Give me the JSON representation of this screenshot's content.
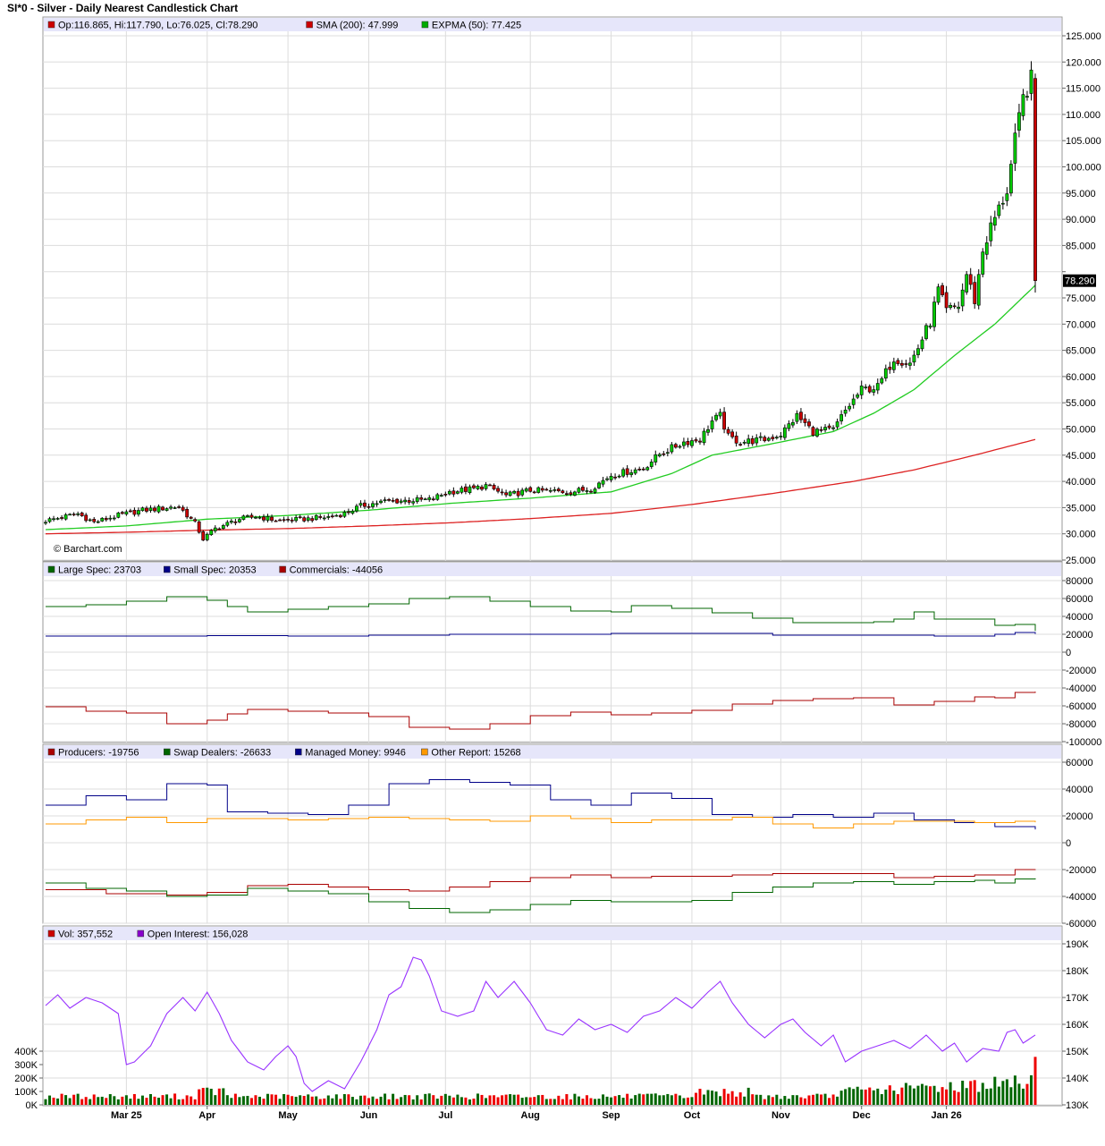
{
  "page": {
    "title": "SI*0 - Silver - Daily Nearest Candlestick Chart",
    "watermark": "© Barchart.com",
    "last_price_tag": "78.290"
  },
  "x_axis": {
    "months": [
      {
        "label": "Mar 25",
        "index": 20
      },
      {
        "label": "Apr",
        "index": 40
      },
      {
        "label": "May",
        "index": 60
      },
      {
        "label": "Jun",
        "index": 80
      },
      {
        "label": "Jul",
        "index": 99
      },
      {
        "label": "Aug",
        "index": 120
      },
      {
        "label": "Sep",
        "index": 140
      },
      {
        "label": "Oct",
        "index": 160
      },
      {
        "label": "Nov",
        "index": 182
      },
      {
        "label": "Dec",
        "index": 202
      },
      {
        "label": "Jan 26",
        "index": 223
      }
    ],
    "bar_count": 241
  },
  "panels": {
    "price": {
      "legend": [
        {
          "label": "Op:116.865, Hi:117.790, Lo:76.025, Cl:78.290",
          "color": "#cc0000"
        },
        {
          "label": "SMA (200): 47.999",
          "color": "#cc0000"
        },
        {
          "label": "EXPMA (50): 77.425",
          "color": "#00aa00"
        }
      ],
      "ylim": [
        25,
        125
      ],
      "ticks": [
        "25.000",
        "30.000",
        "35.000",
        "40.000",
        "45.000",
        "50.000",
        "55.000",
        "60.000",
        "65.000",
        "70.000",
        "75.000",
        "80.000",
        "85.000",
        "90.000",
        "95.000",
        "100.000",
        "105.000",
        "110.000",
        "115.000",
        "120.000",
        "125.000"
      ],
      "hidden_tick": "80.000",
      "colors": {
        "up": "#00cc00",
        "down": "#cc0000",
        "sma": "#dd2222",
        "ema": "#22cc22"
      }
    },
    "cot1": {
      "legend": [
        {
          "label": "Large Spec: 23703",
          "color": "#006600"
        },
        {
          "label": "Small Spec: 20353",
          "color": "#000088"
        },
        {
          "label": "Commercials: -44056",
          "color": "#aa0000"
        }
      ],
      "ylim": [
        -100000,
        80000
      ],
      "ticks": [
        "80000",
        "60000",
        "40000",
        "20000",
        "0",
        "-20000",
        "-40000",
        "-60000",
        "-80000",
        "-100000"
      ],
      "colors": {
        "large": "#006600",
        "small": "#000088",
        "comm": "#aa0000"
      }
    },
    "cot2": {
      "legend": [
        {
          "label": "Producers: -19756",
          "color": "#aa0000"
        },
        {
          "label": "Swap Dealers: -26633",
          "color": "#006600"
        },
        {
          "label": "Managed Money: 9946",
          "color": "#000088"
        },
        {
          "label": "Other Report: 15268",
          "color": "#ff9900"
        }
      ],
      "ylim": [
        -60000,
        60000
      ],
      "ticks": [
        "60000",
        "40000",
        "20000",
        "0",
        "-20000",
        "-40000",
        "-60000"
      ],
      "colors": {
        "producers": "#aa0000",
        "swap": "#006600",
        "managed": "#000088",
        "other": "#ff9900"
      }
    },
    "volume": {
      "legend": [
        {
          "label": "Vol: 357,552",
          "color": "#cc0000"
        },
        {
          "label": "Open Interest: 156,028",
          "color": "#8800cc"
        }
      ],
      "vol_ticks": [
        "0K",
        "100K",
        "200K",
        "300K",
        "400K"
      ],
      "oi_ticks": [
        "130K",
        "140K",
        "150K",
        "160K",
        "170K",
        "180K",
        "190K"
      ],
      "vol_lim": [
        0,
        1200000
      ],
      "oi_lim": [
        130000,
        190000
      ],
      "colors": {
        "up": "#006600",
        "down": "#ee0000",
        "oi": "#9933ff"
      }
    }
  },
  "chart_data": {
    "type": "candlestick",
    "title": "SI*0 - Silver - Daily Nearest Candlestick Chart",
    "price_anchors": [
      [
        0,
        32.5
      ],
      [
        8,
        33.8
      ],
      [
        12,
        32.2
      ],
      [
        18,
        33.5
      ],
      [
        24,
        34.5
      ],
      [
        33,
        35.2
      ],
      [
        37,
        32.0
      ],
      [
        39,
        29.0
      ],
      [
        42,
        31.0
      ],
      [
        48,
        32.8
      ],
      [
        52,
        33.3
      ],
      [
        58,
        32.5
      ],
      [
        64,
        32.8
      ],
      [
        70,
        33.2
      ],
      [
        74,
        33.9
      ],
      [
        78,
        35.3
      ],
      [
        84,
        36.2
      ],
      [
        95,
        36.5
      ],
      [
        100,
        38.0
      ],
      [
        106,
        38.6
      ],
      [
        109,
        39.2
      ],
      [
        114,
        37.3
      ],
      [
        120,
        38.3
      ],
      [
        130,
        38.0
      ],
      [
        135,
        38.6
      ],
      [
        140,
        41.2
      ],
      [
        148,
        42.5
      ],
      [
        152,
        45.2
      ],
      [
        158,
        47.5
      ],
      [
        162,
        48.0
      ],
      [
        165,
        51.5
      ],
      [
        167,
        52.5
      ],
      [
        169,
        48.5
      ],
      [
        172,
        47.5
      ],
      [
        178,
        48.0
      ],
      [
        182,
        49.0
      ],
      [
        186,
        52.5
      ],
      [
        190,
        49.5
      ],
      [
        195,
        49.8
      ],
      [
        198,
        53.5
      ],
      [
        202,
        57.5
      ],
      [
        206,
        58.0
      ],
      [
        210,
        63.5
      ],
      [
        214,
        62.5
      ],
      [
        216,
        65.5
      ],
      [
        219,
        70.5
      ],
      [
        221,
        76.5
      ],
      [
        223,
        72.5
      ],
      [
        226,
        73.5
      ],
      [
        228,
        79.5
      ],
      [
        230,
        74.5
      ],
      [
        232,
        84.0
      ],
      [
        234,
        88.5
      ],
      [
        236,
        92.0
      ],
      [
        238,
        95.5
      ],
      [
        240,
        105.0
      ],
      [
        242,
        113.0
      ],
      [
        244,
        116.8
      ],
      [
        245,
        78.29
      ]
    ],
    "ema50_anchors": [
      [
        0,
        30.8
      ],
      [
        20,
        31.5
      ],
      [
        40,
        32.8
      ],
      [
        60,
        33.5
      ],
      [
        80,
        34.5
      ],
      [
        100,
        35.8
      ],
      [
        120,
        36.8
      ],
      [
        140,
        38.0
      ],
      [
        155,
        41.5
      ],
      [
        165,
        45.0
      ],
      [
        180,
        47.2
      ],
      [
        195,
        49.5
      ],
      [
        205,
        53.0
      ],
      [
        215,
        57.5
      ],
      [
        225,
        64.0
      ],
      [
        235,
        70.0
      ],
      [
        245,
        77.4
      ]
    ],
    "sma200_anchors": [
      [
        0,
        30.0
      ],
      [
        20,
        30.3
      ],
      [
        40,
        30.7
      ],
      [
        60,
        31.0
      ],
      [
        80,
        31.5
      ],
      [
        100,
        32.1
      ],
      [
        120,
        32.9
      ],
      [
        140,
        33.9
      ],
      [
        160,
        35.6
      ],
      [
        180,
        37.7
      ],
      [
        200,
        40.0
      ],
      [
        215,
        42.2
      ],
      [
        230,
        45.0
      ],
      [
        240,
        47.0
      ],
      [
        245,
        48.0
      ]
    ],
    "cot_large_spec": [
      [
        0,
        51000
      ],
      [
        10,
        53000
      ],
      [
        20,
        57000
      ],
      [
        30,
        62000
      ],
      [
        40,
        58000
      ],
      [
        45,
        51000
      ],
      [
        50,
        45000
      ],
      [
        60,
        48000
      ],
      [
        70,
        51000
      ],
      [
        80,
        54000
      ],
      [
        90,
        60000
      ],
      [
        100,
        62000
      ],
      [
        110,
        57000
      ],
      [
        120,
        51000
      ],
      [
        130,
        46000
      ],
      [
        140,
        45000
      ],
      [
        145,
        52000
      ],
      [
        155,
        49000
      ],
      [
        165,
        44000
      ],
      [
        175,
        38000
      ],
      [
        185,
        33000
      ],
      [
        195,
        33000
      ],
      [
        205,
        34000
      ],
      [
        210,
        37000
      ],
      [
        215,
        45000
      ],
      [
        220,
        37000
      ],
      [
        230,
        37000
      ],
      [
        235,
        30000
      ],
      [
        240,
        31000
      ],
      [
        245,
        23703
      ]
    ],
    "cot_small_spec": [
      [
        0,
        18000
      ],
      [
        20,
        18000
      ],
      [
        40,
        18500
      ],
      [
        60,
        18000
      ],
      [
        80,
        19000
      ],
      [
        100,
        20000
      ],
      [
        120,
        20000
      ],
      [
        140,
        21000
      ],
      [
        160,
        21000
      ],
      [
        180,
        19000
      ],
      [
        200,
        19000
      ],
      [
        220,
        18000
      ],
      [
        235,
        20000
      ],
      [
        240,
        22000
      ],
      [
        245,
        20353
      ]
    ],
    "cot_commercials": [
      [
        0,
        -61000
      ],
      [
        10,
        -66000
      ],
      [
        20,
        -68000
      ],
      [
        30,
        -80000
      ],
      [
        40,
        -76000
      ],
      [
        45,
        -69000
      ],
      [
        50,
        -64000
      ],
      [
        60,
        -66000
      ],
      [
        70,
        -68000
      ],
      [
        80,
        -72000
      ],
      [
        90,
        -84000
      ],
      [
        100,
        -86000
      ],
      [
        110,
        -80000
      ],
      [
        120,
        -71000
      ],
      [
        130,
        -67000
      ],
      [
        140,
        -70000
      ],
      [
        150,
        -68000
      ],
      [
        160,
        -65000
      ],
      [
        170,
        -58000
      ],
      [
        180,
        -54000
      ],
      [
        190,
        -52000
      ],
      [
        200,
        -51000
      ],
      [
        210,
        -59000
      ],
      [
        220,
        -55000
      ],
      [
        230,
        -50000
      ],
      [
        235,
        -51000
      ],
      [
        240,
        -45000
      ],
      [
        245,
        -44056
      ]
    ],
    "cot_producers": [
      [
        0,
        -35000
      ],
      [
        15,
        -38000
      ],
      [
        30,
        -39000
      ],
      [
        40,
        -37000
      ],
      [
        50,
        -32000
      ],
      [
        60,
        -31000
      ],
      [
        70,
        -33000
      ],
      [
        80,
        -35000
      ],
      [
        90,
        -36000
      ],
      [
        100,
        -33000
      ],
      [
        110,
        -29000
      ],
      [
        120,
        -26000
      ],
      [
        130,
        -24000
      ],
      [
        140,
        -26000
      ],
      [
        150,
        -25000
      ],
      [
        160,
        -25000
      ],
      [
        170,
        -24000
      ],
      [
        180,
        -23000
      ],
      [
        190,
        -23000
      ],
      [
        200,
        -23000
      ],
      [
        210,
        -26000
      ],
      [
        220,
        -25000
      ],
      [
        230,
        -24000
      ],
      [
        240,
        -20000
      ],
      [
        245,
        -19756
      ]
    ],
    "cot_swap": [
      [
        0,
        -30000
      ],
      [
        10,
        -34000
      ],
      [
        20,
        -36000
      ],
      [
        30,
        -40000
      ],
      [
        40,
        -39000
      ],
      [
        50,
        -34000
      ],
      [
        60,
        -36000
      ],
      [
        70,
        -38000
      ],
      [
        80,
        -44000
      ],
      [
        90,
        -49000
      ],
      [
        100,
        -52000
      ],
      [
        110,
        -50000
      ],
      [
        120,
        -46000
      ],
      [
        130,
        -43000
      ],
      [
        140,
        -44000
      ],
      [
        150,
        -44000
      ],
      [
        160,
        -43000
      ],
      [
        170,
        -37000
      ],
      [
        180,
        -33000
      ],
      [
        190,
        -30000
      ],
      [
        200,
        -29000
      ],
      [
        210,
        -31000
      ],
      [
        220,
        -29000
      ],
      [
        230,
        -28000
      ],
      [
        235,
        -30000
      ],
      [
        240,
        -27000
      ],
      [
        245,
        -26633
      ]
    ],
    "cot_managed": [
      [
        0,
        28000
      ],
      [
        10,
        35000
      ],
      [
        20,
        32000
      ],
      [
        30,
        44000
      ],
      [
        40,
        43000
      ],
      [
        45,
        23000
      ],
      [
        55,
        22000
      ],
      [
        65,
        21000
      ],
      [
        75,
        28000
      ],
      [
        85,
        44000
      ],
      [
        95,
        47000
      ],
      [
        105,
        45000
      ],
      [
        115,
        43000
      ],
      [
        125,
        32000
      ],
      [
        135,
        28000
      ],
      [
        145,
        37000
      ],
      [
        155,
        33000
      ],
      [
        165,
        21000
      ],
      [
        175,
        19000
      ],
      [
        185,
        21000
      ],
      [
        195,
        19000
      ],
      [
        205,
        22000
      ],
      [
        215,
        17000
      ],
      [
        225,
        15000
      ],
      [
        235,
        12000
      ],
      [
        245,
        9946
      ]
    ],
    "cot_other": [
      [
        0,
        14000
      ],
      [
        10,
        17000
      ],
      [
        20,
        19000
      ],
      [
        30,
        15000
      ],
      [
        40,
        18000
      ],
      [
        50,
        18000
      ],
      [
        60,
        17000
      ],
      [
        70,
        18000
      ],
      [
        80,
        19000
      ],
      [
        90,
        18000
      ],
      [
        100,
        17000
      ],
      [
        110,
        16000
      ],
      [
        120,
        20000
      ],
      [
        130,
        18000
      ],
      [
        140,
        15000
      ],
      [
        150,
        17000
      ],
      [
        160,
        17000
      ],
      [
        170,
        19000
      ],
      [
        180,
        14000
      ],
      [
        190,
        11000
      ],
      [
        200,
        14000
      ],
      [
        210,
        16000
      ],
      [
        220,
        16000
      ],
      [
        230,
        15000
      ],
      [
        240,
        16000
      ],
      [
        245,
        15268
      ]
    ],
    "open_interest": [
      [
        0,
        167000
      ],
      [
        3,
        171000
      ],
      [
        6,
        166000
      ],
      [
        10,
        170000
      ],
      [
        14,
        168000
      ],
      [
        18,
        164000
      ],
      [
        20,
        145000
      ],
      [
        22,
        146000
      ],
      [
        26,
        152000
      ],
      [
        30,
        164000
      ],
      [
        34,
        170000
      ],
      [
        37,
        165000
      ],
      [
        40,
        172000
      ],
      [
        43,
        164000
      ],
      [
        46,
        154000
      ],
      [
        50,
        146000
      ],
      [
        54,
        143000
      ],
      [
        57,
        148000
      ],
      [
        60,
        152000
      ],
      [
        62,
        148000
      ],
      [
        64,
        138000
      ],
      [
        66,
        135000
      ],
      [
        70,
        139000
      ],
      [
        74,
        136000
      ],
      [
        78,
        146000
      ],
      [
        82,
        158000
      ],
      [
        85,
        171000
      ],
      [
        88,
        174000
      ],
      [
        91,
        185000
      ],
      [
        93,
        184000
      ],
      [
        95,
        178000
      ],
      [
        98,
        165000
      ],
      [
        102,
        163000
      ],
      [
        106,
        165000
      ],
      [
        109,
        176000
      ],
      [
        112,
        170000
      ],
      [
        116,
        176000
      ],
      [
        120,
        168000
      ],
      [
        124,
        158000
      ],
      [
        128,
        156000
      ],
      [
        132,
        162000
      ],
      [
        136,
        158000
      ],
      [
        140,
        160000
      ],
      [
        144,
        157000
      ],
      [
        148,
        163000
      ],
      [
        152,
        165000
      ],
      [
        156,
        170000
      ],
      [
        160,
        166000
      ],
      [
        164,
        172000
      ],
      [
        167,
        176000
      ],
      [
        170,
        168000
      ],
      [
        174,
        160000
      ],
      [
        178,
        155000
      ],
      [
        182,
        160000
      ],
      [
        185,
        162000
      ],
      [
        188,
        157000
      ],
      [
        192,
        152000
      ],
      [
        195,
        156000
      ],
      [
        198,
        146000
      ],
      [
        202,
        150000
      ],
      [
        206,
        152000
      ],
      [
        210,
        154000
      ],
      [
        214,
        151000
      ],
      [
        218,
        156000
      ],
      [
        222,
        150000
      ],
      [
        225,
        153000
      ],
      [
        228,
        146000
      ],
      [
        232,
        151000
      ],
      [
        236,
        150000
      ],
      [
        238,
        157000
      ],
      [
        240,
        158000
      ],
      [
        242,
        153000
      ],
      [
        245,
        156028
      ]
    ]
  }
}
